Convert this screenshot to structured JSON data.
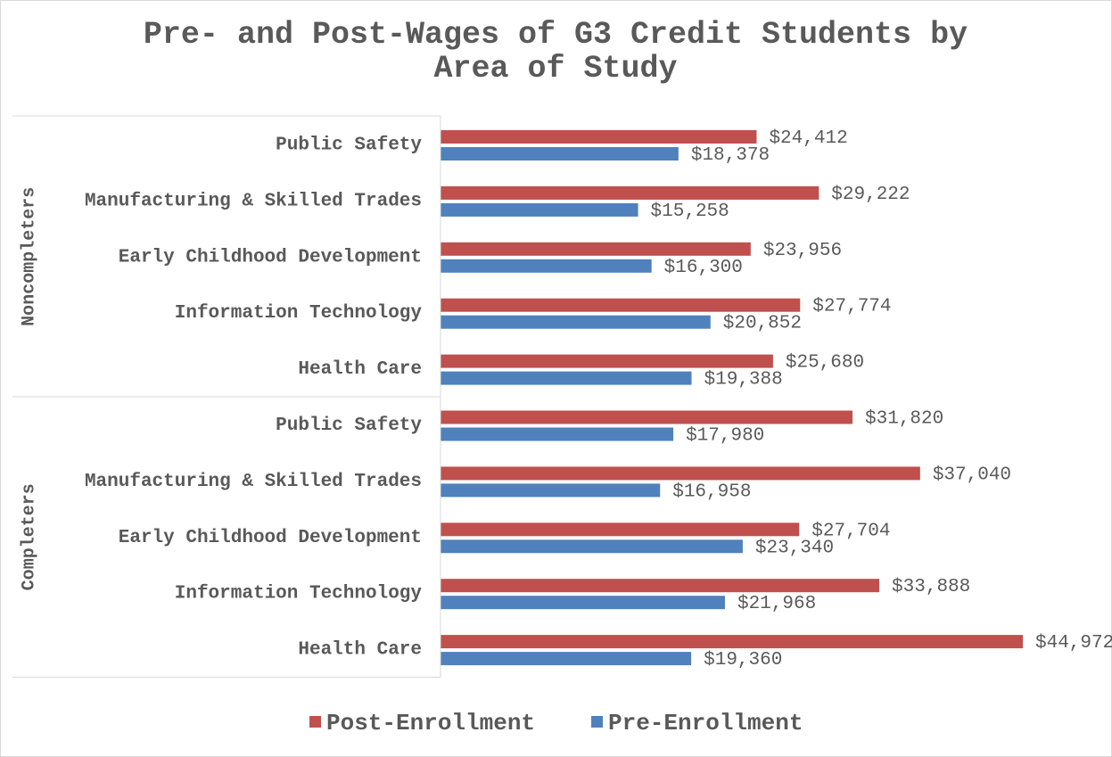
{
  "chart_data": {
    "type": "hbar",
    "title": "Pre- and Post-Wages of G3 Credit Students by Area of Study",
    "categories": [
      "Public Safety",
      "Manufacturing & Skilled Trades",
      "Early Childhood Development",
      "Information Technology",
      "Health Care",
      "Public Safety",
      "Manufacturing & Skilled Trades",
      "Early Childhood Development",
      "Information Technology",
      "Health Care"
    ],
    "category_groups": [
      {
        "name": "Noncompleters",
        "span": 5
      },
      {
        "name": "Completers",
        "span": 5
      }
    ],
    "series": [
      {
        "name": "Post-Enrollment",
        "color": "#c0504d",
        "values": [
          24412,
          29222,
          23956,
          27774,
          25680,
          31820,
          37040,
          27704,
          33888,
          44972
        ],
        "value_labels": [
          "$24,412",
          "$29,222",
          "$23,956",
          "$27,774",
          "$25,680",
          "$31,820",
          "$37,040",
          "$27,704",
          "$33,888",
          "$44,972"
        ]
      },
      {
        "name": "Pre-Enrollment",
        "color": "#4f81bd",
        "values": [
          18378,
          15258,
          16300,
          20852,
          19388,
          17980,
          16958,
          23340,
          21968,
          19360
        ],
        "value_labels": [
          "$18,378",
          "$15,258",
          "$16,300",
          "$20,852",
          "$19,388",
          "$17,980",
          "$16,958",
          "$23,340",
          "$21,968",
          "$19,360"
        ]
      }
    ],
    "legend": "bottom"
  }
}
